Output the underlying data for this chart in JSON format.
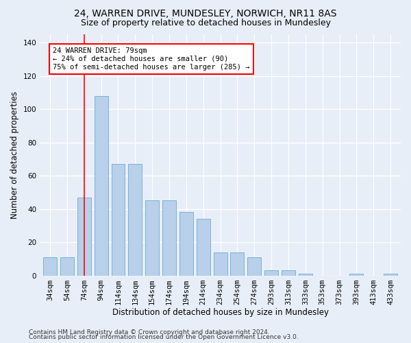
{
  "title": "24, WARREN DRIVE, MUNDESLEY, NORWICH, NR11 8AS",
  "subtitle": "Size of property relative to detached houses in Mundesley",
  "xlabel": "Distribution of detached houses by size in Mundesley",
  "ylabel": "Number of detached properties",
  "categories": [
    "34sqm",
    "54sqm",
    "74sqm",
    "94sqm",
    "114sqm",
    "134sqm",
    "154sqm",
    "174sqm",
    "194sqm",
    "214sqm",
    "234sqm",
    "254sqm",
    "274sqm",
    "293sqm",
    "313sqm",
    "333sqm",
    "353sqm",
    "373sqm",
    "393sqm",
    "413sqm",
    "433sqm"
  ],
  "values": [
    11,
    11,
    47,
    108,
    67,
    67,
    45,
    45,
    38,
    34,
    14,
    14,
    11,
    3,
    3,
    1,
    0,
    0,
    1,
    0,
    1
  ],
  "bar_color": "#b8d0ea",
  "bar_edgecolor": "#6aaad4",
  "red_line_x": 2,
  "annotation_text": "24 WARREN DRIVE: 79sqm\n← 24% of detached houses are smaller (90)\n75% of semi-detached houses are larger (285) →",
  "annotation_box_color": "white",
  "annotation_box_edgecolor": "red",
  "red_line_color": "red",
  "ylim": [
    0,
    145
  ],
  "yticks": [
    0,
    20,
    40,
    60,
    80,
    100,
    120,
    140
  ],
  "background_color": "#e8eef8",
  "plot_background": "#e8eef8",
  "grid_color": "white",
  "footer1": "Contains HM Land Registry data © Crown copyright and database right 2024.",
  "footer2": "Contains public sector information licensed under the Open Government Licence v3.0.",
  "title_fontsize": 10,
  "subtitle_fontsize": 9,
  "xlabel_fontsize": 8.5,
  "ylabel_fontsize": 8.5,
  "tick_fontsize": 7.5,
  "annotation_fontsize": 7.5,
  "footer_fontsize": 6.5
}
